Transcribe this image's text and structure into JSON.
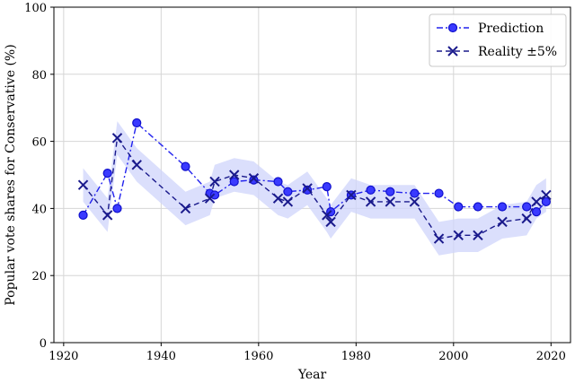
{
  "chart_data": {
    "type": "line",
    "title": "",
    "xlabel": "Year",
    "ylabel": "Popular vote shares for Conservative (%)",
    "xlim": [
      1918,
      2024
    ],
    "ylim": [
      0,
      100
    ],
    "xticks": [
      1920,
      1940,
      1960,
      1980,
      2000,
      2020
    ],
    "yticks": [
      0,
      20,
      40,
      60,
      80,
      100
    ],
    "grid": true,
    "legend_position": "top-right",
    "band_halfwidth": 5,
    "series": [
      {
        "name": "Prediction",
        "style": "dash-dot",
        "marker": "circle",
        "color": "#2222ee",
        "x": [
          1924,
          1929,
          1931,
          1935,
          1945,
          1950,
          1951,
          1955,
          1959,
          1964,
          1966,
          1970,
          1974,
          1974.8,
          1979,
          1983,
          1987,
          1992,
          1997,
          2001,
          2005,
          2010,
          2015,
          2017,
          2019
        ],
        "y": [
          38,
          50.5,
          40,
          65.5,
          52.5,
          44.5,
          44,
          48,
          48.5,
          48,
          45,
          45.5,
          46.5,
          39,
          44,
          45.5,
          45,
          44.5,
          44.5,
          40.5,
          40.5,
          40.5,
          40.5,
          39,
          42
        ]
      },
      {
        "name": "Reality ±5%",
        "style": "dashed",
        "marker": "x",
        "color": "#1a1a8c",
        "x": [
          1924,
          1929,
          1931,
          1935,
          1945,
          1950,
          1951,
          1955,
          1959,
          1964,
          1966,
          1970,
          1974,
          1974.8,
          1979,
          1983,
          1987,
          1992,
          1997,
          2001,
          2005,
          2010,
          2015,
          2017,
          2019
        ],
        "y": [
          47,
          38,
          61,
          53,
          40,
          43,
          48,
          50,
          49,
          43,
          42,
          46,
          38,
          36,
          44,
          42,
          42,
          42,
          31,
          32,
          32,
          36,
          37,
          42,
          44
        ]
      }
    ]
  }
}
